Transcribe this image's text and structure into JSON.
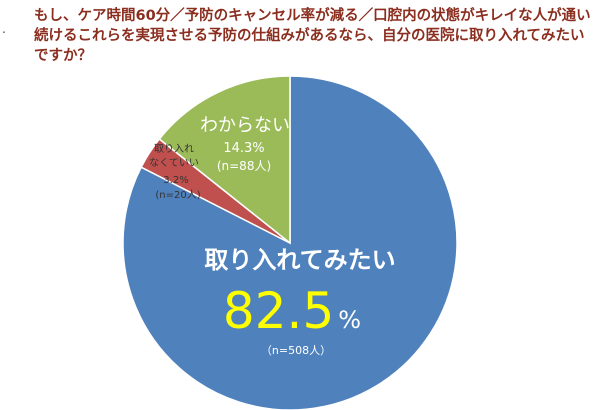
{
  "bullet": ".",
  "title": "もし、ケア時間60分／予防のキャンセル率が減る／口腔内の状態がキレイな人が通い続けるこれらを実現させる予防の仕組みがあるなら、自分の医院に取り入れてみたいですか？",
  "chart_data": {
    "type": "pie",
    "slices": [
      {
        "label": "取り入れてみたい",
        "percent_text": "82.5",
        "percent_unit": "%",
        "n": "（n=508人）",
        "value": 82.5,
        "color": "#4f81bd"
      },
      {
        "label_lines": [
          "取り入れ",
          "なくていい"
        ],
        "percent_text": "3.2%",
        "n": "(n=20人)",
        "value": 3.2,
        "color": "#c0504d"
      },
      {
        "label": "わからない",
        "percent_text": "14.3%",
        "n": "(n=88人)",
        "value": 14.3,
        "color": "#9bbb59"
      }
    ]
  }
}
